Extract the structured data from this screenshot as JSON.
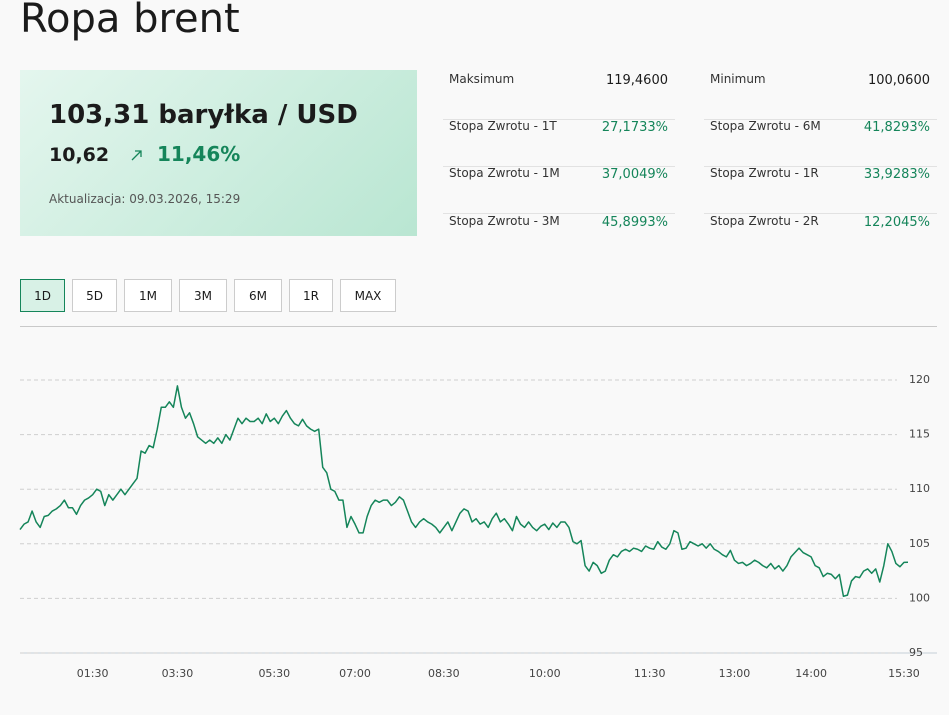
{
  "header": {
    "title": "Ropa brent"
  },
  "quote": {
    "price": "103,31 baryłka / USD",
    "change": "10,62",
    "change_pct": "11,46%",
    "updated": "Aktualizacja: 09.03.2026, 15:29"
  },
  "stats": [
    [
      {
        "label": "Maksimum",
        "value": "119,4600"
      },
      {
        "label": "Minimum",
        "value": "100,0600"
      }
    ],
    [
      {
        "label": "Stopa Zwrotu - 1T",
        "value": "27,1733%"
      },
      {
        "label": "Stopa Zwrotu - 6M",
        "value": "41,8293%"
      }
    ],
    [
      {
        "label": "Stopa Zwrotu - 1M",
        "value": "37,0049%"
      },
      {
        "label": "Stopa Zwrotu - 1R",
        "value": "33,9283%"
      }
    ],
    [
      {
        "label": "Stopa Zwrotu - 3M",
        "value": "45,8993%"
      },
      {
        "label": "Stopa Zwrotu - 2R",
        "value": "12,2045%"
      }
    ]
  ],
  "ranges": [
    "1D",
    "5D",
    "1M",
    "3M",
    "6M",
    "1R",
    "MAX"
  ],
  "chart_data": {
    "type": "line",
    "color": "#15855a",
    "grid": true,
    "ylim": [
      95,
      120
    ],
    "yticks": [
      95,
      100,
      105,
      110,
      115,
      120
    ],
    "categories": [
      null,
      null,
      null,
      null,
      null,
      null,
      null,
      null,
      null,
      null,
      null,
      null,
      null,
      null,
      null,
      null,
      null,
      null,
      "01:30",
      null,
      null,
      null,
      null,
      null,
      null,
      null,
      null,
      null,
      null,
      null,
      null,
      null,
      null,
      null,
      null,
      null,
      null,
      null,
      null,
      "03:30",
      null,
      null,
      null,
      null,
      null,
      null,
      null,
      null,
      null,
      null,
      null,
      null,
      null,
      null,
      null,
      null,
      null,
      null,
      null,
      null,
      null,
      null,
      null,
      "05:30",
      null,
      null,
      null,
      null,
      null,
      null,
      null,
      null,
      null,
      null,
      null,
      null,
      null,
      null,
      null,
      null,
      null,
      null,
      null,
      "07:00",
      null,
      null,
      null,
      null,
      null,
      null,
      null,
      null,
      null,
      null,
      null,
      null,
      null,
      null,
      null,
      null,
      null,
      null,
      null,
      null,
      null,
      "08:30",
      null,
      null,
      null,
      null,
      null,
      null,
      null,
      null,
      null,
      null,
      null,
      null,
      null,
      null,
      null,
      null,
      null,
      null,
      null,
      null,
      null,
      null,
      null,
      null,
      "10:00",
      null,
      null,
      null,
      null,
      null,
      null,
      null,
      null,
      null,
      null,
      null,
      null,
      null,
      null,
      null,
      null,
      null,
      null,
      null,
      null,
      null,
      null,
      null,
      null,
      null,
      "11:30",
      null,
      null,
      null,
      null,
      null,
      null,
      null,
      null,
      null,
      null,
      null,
      null,
      null,
      null,
      null,
      null,
      null,
      null,
      null,
      null,
      "13:00",
      null,
      null,
      null,
      null,
      null,
      null,
      null,
      null,
      null,
      null,
      null,
      null,
      null,
      null,
      null,
      null,
      null,
      null,
      "14:00",
      null,
      null,
      null,
      null,
      null,
      null,
      null,
      null,
      null,
      null,
      null,
      null,
      null,
      null,
      null,
      null,
      null,
      null,
      null,
      null,
      null,
      null,
      "15:30",
      null
    ],
    "values": [
      106.3,
      106.8,
      107,
      108,
      107,
      106.5,
      107.5,
      107.6,
      108,
      108.2,
      108.5,
      109,
      108.3,
      108.3,
      107.7,
      108.5,
      109,
      109.2,
      109.5,
      110,
      109.8,
      108.5,
      109.5,
      109,
      109.5,
      110,
      109.5,
      110,
      110.5,
      111,
      113.5,
      113.3,
      114,
      113.8,
      115.5,
      117.5,
      117.5,
      118,
      117.5,
      119.46,
      117.5,
      116.5,
      117,
      116,
      114.8,
      114.5,
      114.2,
      114.5,
      114.2,
      114.7,
      114.2,
      115,
      114.5,
      115.5,
      116.5,
      116,
      116.5,
      116.2,
      116.2,
      116.5,
      116,
      116.9,
      116.2,
      116.5,
      116,
      116.7,
      117.2,
      116.5,
      116,
      115.8,
      116.4,
      115.8,
      115.5,
      115.3,
      115.5,
      112,
      111.5,
      110,
      109.8,
      109,
      109,
      106.5,
      107.5,
      106.8,
      106,
      106,
      107.5,
      108.5,
      109,
      108.8,
      109,
      109,
      108.5,
      108.8,
      109.3,
      109,
      108,
      107,
      106.5,
      107,
      107.3,
      107,
      106.8,
      106.5,
      106,
      106.5,
      107,
      106.2,
      107,
      107.8,
      108.2,
      108,
      107,
      107.3,
      106.8,
      107,
      106.5,
      107.3,
      107.8,
      107,
      107.3,
      106.8,
      106.2,
      107.5,
      106.8,
      106.5,
      107,
      106.5,
      106.2,
      106.6,
      106.8,
      106.3,
      106.9,
      106.5,
      107,
      107,
      106.5,
      105.2,
      105,
      105.3,
      103,
      102.5,
      103.3,
      103,
      102.3,
      102.5,
      103.5,
      104,
      103.8,
      104.3,
      104.5,
      104.3,
      104.6,
      104.5,
      104.3,
      104.8,
      104.6,
      104.5,
      105.2,
      104.7,
      104.5,
      105,
      106.2,
      106,
      104.5,
      104.6,
      105.2,
      105,
      104.8,
      105,
      104.6,
      105,
      104.5,
      104.3,
      104,
      103.8,
      104.4,
      103.5,
      103.2,
      103.3,
      103,
      103.2,
      103.5,
      103.3,
      103,
      102.8,
      103.2,
      102.7,
      103,
      102.5,
      103,
      103.8,
      104.2,
      104.6,
      104.2,
      104,
      103.8,
      103,
      102.8,
      102,
      102.3,
      102.2,
      101.8,
      102.2,
      100.2,
      100.3,
      101.6,
      102,
      101.9,
      102.5,
      102.7,
      102.3,
      102.7,
      101.5,
      103,
      105,
      104.3,
      103.2,
      102.9,
      103.3,
      103.31
    ]
  }
}
